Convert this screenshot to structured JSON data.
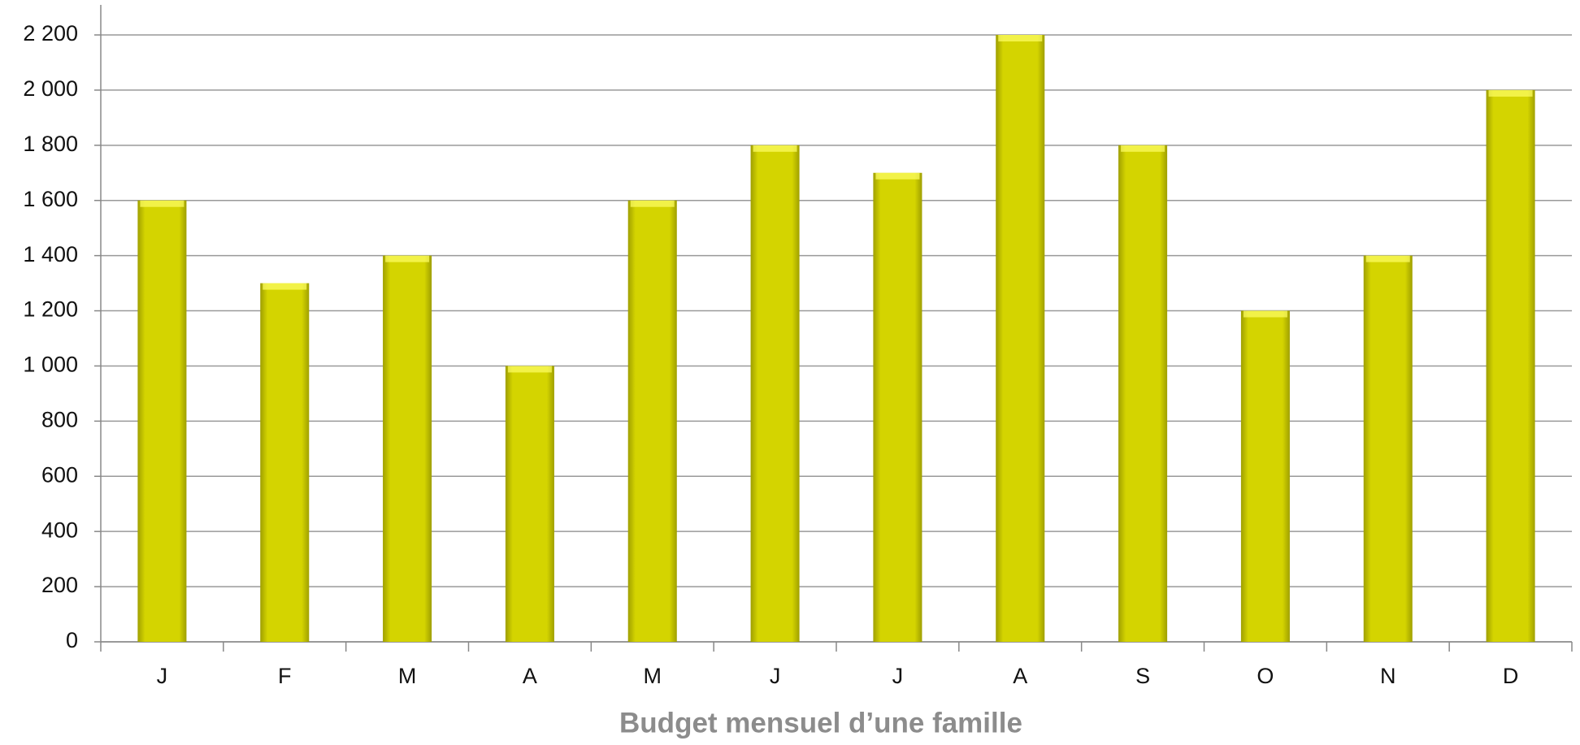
{
  "chart_data": {
    "type": "bar",
    "title": "Budget  mensuel d’une famille",
    "categories": [
      "J",
      "F",
      "M",
      "A",
      "M",
      "J",
      "J",
      "A",
      "S",
      "O",
      "N",
      "D"
    ],
    "values": [
      1600,
      1300,
      1400,
      1000,
      1600,
      1800,
      1700,
      2200,
      1800,
      1200,
      1400,
      2000
    ],
    "color": "#d4d400",
    "ylim": [
      0,
      2200
    ],
    "yticks": [
      0,
      200,
      400,
      600,
      800,
      {
        "value": 1000,
        "label": "1 000"
      },
      {
        "value": 1200,
        "label": "1 200"
      },
      {
        "value": 1400,
        "label": "1 400"
      },
      {
        "value": 1600,
        "label": "1 600"
      },
      {
        "value": 1800,
        "label": "1 800"
      },
      {
        "value": 2000,
        "label": "2 000"
      },
      {
        "value": 2200,
        "label": "2 200"
      }
    ],
    "grid": true
  }
}
